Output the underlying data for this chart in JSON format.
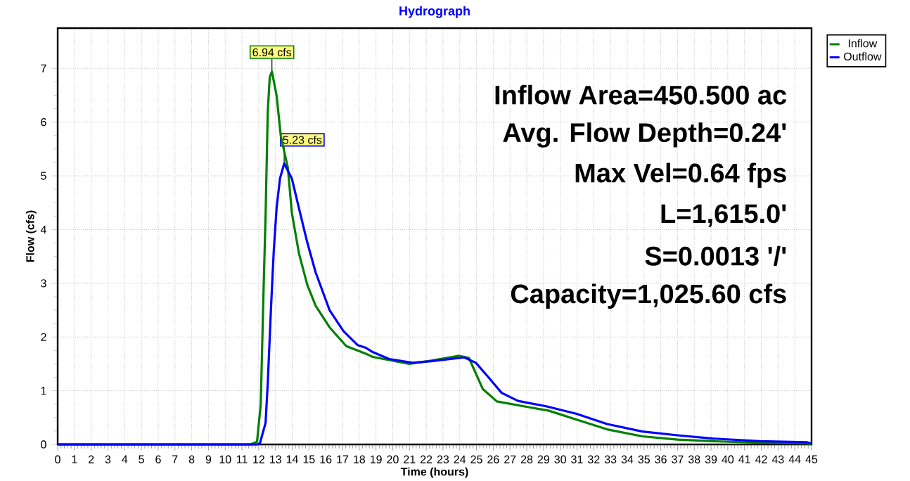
{
  "chart_data": {
    "type": "line",
    "title": "Hydrograph",
    "xlabel": "Time  (hours)",
    "ylabel": "Flow  (cfs)",
    "xlim": [
      0,
      45
    ],
    "ylim": [
      0,
      7.75
    ],
    "xticks": [
      0,
      1,
      2,
      3,
      4,
      5,
      6,
      7,
      8,
      9,
      10,
      11,
      12,
      13,
      14,
      15,
      16,
      17,
      18,
      19,
      20,
      21,
      22,
      23,
      24,
      25,
      26,
      27,
      28,
      29,
      30,
      31,
      32,
      33,
      34,
      35,
      36,
      37,
      38,
      39,
      40,
      41,
      42,
      43,
      44,
      45
    ],
    "yticks": [
      0,
      1,
      2,
      3,
      4,
      5,
      6,
      7
    ],
    "grid": true,
    "legend": "top right",
    "series": [
      {
        "name": "Inflow",
        "color": "#008000",
        "x": [
          0,
          11.5,
          11.9,
          12.12,
          12.29,
          12.41,
          12.54,
          12.66,
          12.79,
          13.07,
          13.32,
          13.74,
          13.98,
          14.4,
          14.9,
          15.4,
          16.23,
          17.23,
          18.39,
          18.8,
          20.98,
          22.3,
          23.97,
          24.55,
          25.38,
          26.22,
          28.17,
          29.3,
          30.98,
          32.8,
          34.9,
          37.0,
          39.1,
          41.9,
          44.7,
          45
        ],
        "values": [
          0,
          0,
          0.05,
          0.74,
          2.87,
          4.26,
          6.19,
          6.84,
          6.94,
          6.49,
          5.74,
          5.15,
          4.31,
          3.56,
          2.97,
          2.58,
          2.18,
          1.83,
          1.69,
          1.63,
          1.5,
          1.56,
          1.65,
          1.61,
          1.03,
          0.8,
          0.69,
          0.63,
          0.46,
          0.28,
          0.15,
          0.09,
          0.06,
          0.03,
          0.02,
          0
        ]
      },
      {
        "name": "Outflow",
        "color": "#0000ff",
        "x": [
          0,
          11.9,
          12.07,
          12.41,
          12.54,
          12.74,
          12.9,
          13.07,
          13.27,
          13.52,
          13.98,
          14.4,
          14.9,
          15.4,
          16.23,
          17.06,
          17.9,
          18.39,
          18.8,
          19.78,
          21.19,
          22.3,
          24.27,
          24.96,
          25.66,
          26.5,
          27.48,
          29.16,
          30.98,
          32.8,
          34.9,
          37.0,
          39.1,
          41.9,
          44.7,
          45
        ],
        "values": [
          0,
          0,
          0.02,
          0.4,
          1.14,
          2.58,
          3.61,
          4.41,
          4.95,
          5.23,
          4.95,
          4.4,
          3.76,
          3.2,
          2.5,
          2.11,
          1.85,
          1.8,
          1.72,
          1.59,
          1.52,
          1.55,
          1.62,
          1.52,
          1.27,
          0.96,
          0.81,
          0.71,
          0.57,
          0.38,
          0.24,
          0.17,
          0.11,
          0.06,
          0.04,
          0.02
        ]
      }
    ],
    "annotations": [
      {
        "text": "6.94 cfs",
        "x": 12.79,
        "y": 6.94
      },
      {
        "text": "5.23 cfs",
        "x": 13.52,
        "y": 5.23
      },
      "Inflow Area=450.500 ac",
      "Avg. Flow Depth=0.24'",
      "Max Vel=0.64 fps",
      "L=1,615.0'",
      "S=0.0013 '/'",
      "Capacity=1,025.60 cfs"
    ]
  }
}
